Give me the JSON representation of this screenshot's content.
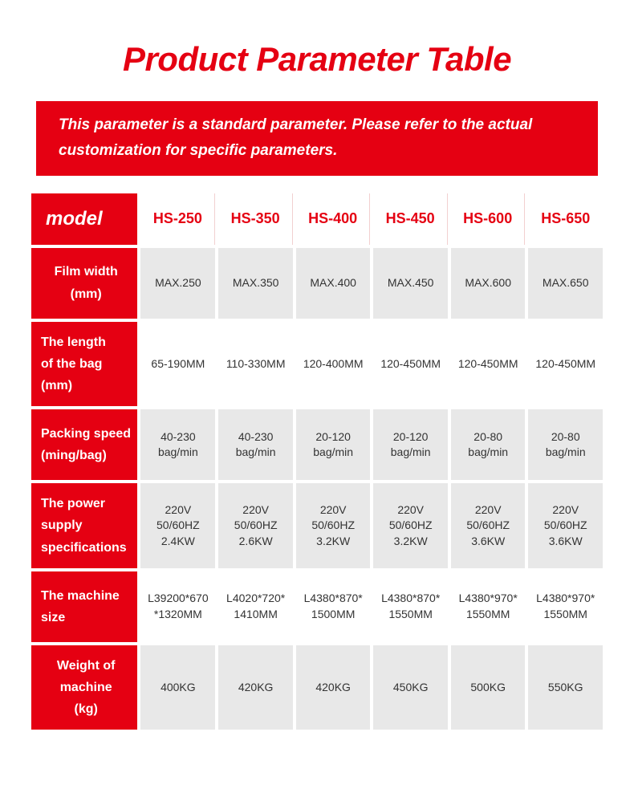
{
  "title": "Product Parameter Table",
  "banner": "This parameter is a standard parameter. Please refer to the actual customization for specific parameters.",
  "colors": {
    "primary": "#e50012",
    "cell_gray": "#e8e8e8",
    "cell_white": "#ffffff",
    "text": "#333333"
  },
  "header": {
    "label": "model",
    "columns": [
      "HS-250",
      "HS-350",
      "HS-400",
      "HS-450",
      "HS-600",
      "HS-650"
    ]
  },
  "rows": [
    {
      "label": "Film width\n(mm)",
      "align": "center",
      "bg": "gray",
      "cells": [
        "MAX.250",
        "MAX.350",
        "MAX.400",
        "MAX.450",
        "MAX.600",
        "MAX.650"
      ]
    },
    {
      "label": "The length\nof the bag\n(mm)",
      "align": "left",
      "bg": "white",
      "cells": [
        "65-190MM",
        "110-330MM",
        "120-400MM",
        "120-450MM",
        "120-450MM",
        "120-450MM"
      ]
    },
    {
      "label": "Packing speed\n(ming/bag)",
      "align": "left",
      "bg": "gray",
      "cells": [
        "40-230\nbag/min",
        "40-230\nbag/min",
        "20-120\nbag/min",
        "20-120\nbag/min",
        "20-80\nbag/min",
        "20-80\nbag/min"
      ]
    },
    {
      "label": "The power\nsupply\nspecifications",
      "align": "left",
      "bg": "gray",
      "cells": [
        "220V\n50/60HZ\n2.4KW",
        "220V\n50/60HZ\n2.6KW",
        "220V\n50/60HZ\n3.2KW",
        "220V\n50/60HZ\n3.2KW",
        "220V\n50/60HZ\n3.6KW",
        "220V\n50/60HZ\n3.6KW"
      ]
    },
    {
      "label": "The machine\nsize",
      "align": "left",
      "bg": "white",
      "cells": [
        "L39200*670\n*1320MM",
        "L4020*720*\n1410MM",
        "L4380*870*\n1500MM",
        "L4380*870*\n1550MM",
        "L4380*970*\n1550MM",
        "L4380*970*\n1550MM"
      ]
    },
    {
      "label": "Weight of\nmachine\n(kg)",
      "align": "center",
      "bg": "gray",
      "cells": [
        "400KG",
        "420KG",
        "420KG",
        "450KG",
        "500KG",
        "550KG"
      ]
    }
  ]
}
